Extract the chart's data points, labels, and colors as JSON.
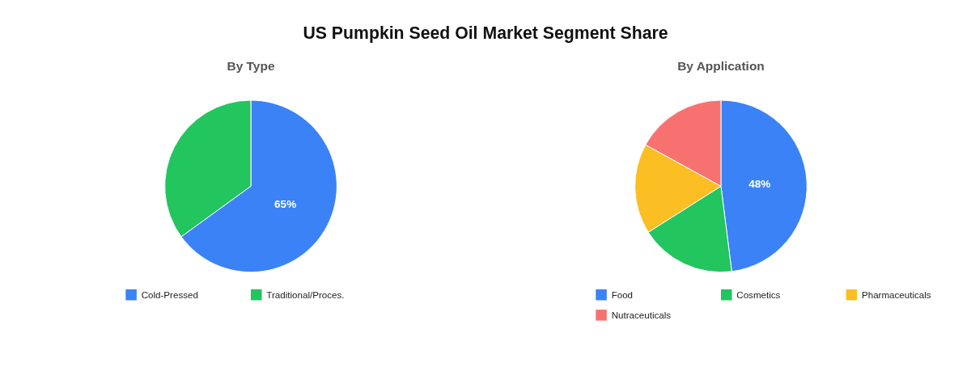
{
  "chart_data": [
    {
      "type": "pie",
      "title": "US Pumpkin Seed Oil Market Segment Share",
      "subtitle": "By Type",
      "categories": [
        "Cold-Pressed",
        "Traditional/Proces."
      ],
      "values": [
        65,
        35
      ],
      "colors": [
        "#3b82f6",
        "#22c55e"
      ],
      "value_labels": [
        "65%",
        null
      ],
      "legend": "bottom"
    },
    {
      "type": "pie",
      "subtitle": "By Application",
      "categories": [
        "Food",
        "Cosmetics",
        "Pharmaceuticals",
        "Nutraceuticals"
      ],
      "values": [
        48,
        18,
        17,
        17
      ],
      "colors": [
        "#3b82f6",
        "#22c55e",
        "#fbbf24",
        "#f87171"
      ],
      "value_labels": [
        "48%",
        null,
        null,
        null
      ],
      "legend": "bottom"
    }
  ]
}
